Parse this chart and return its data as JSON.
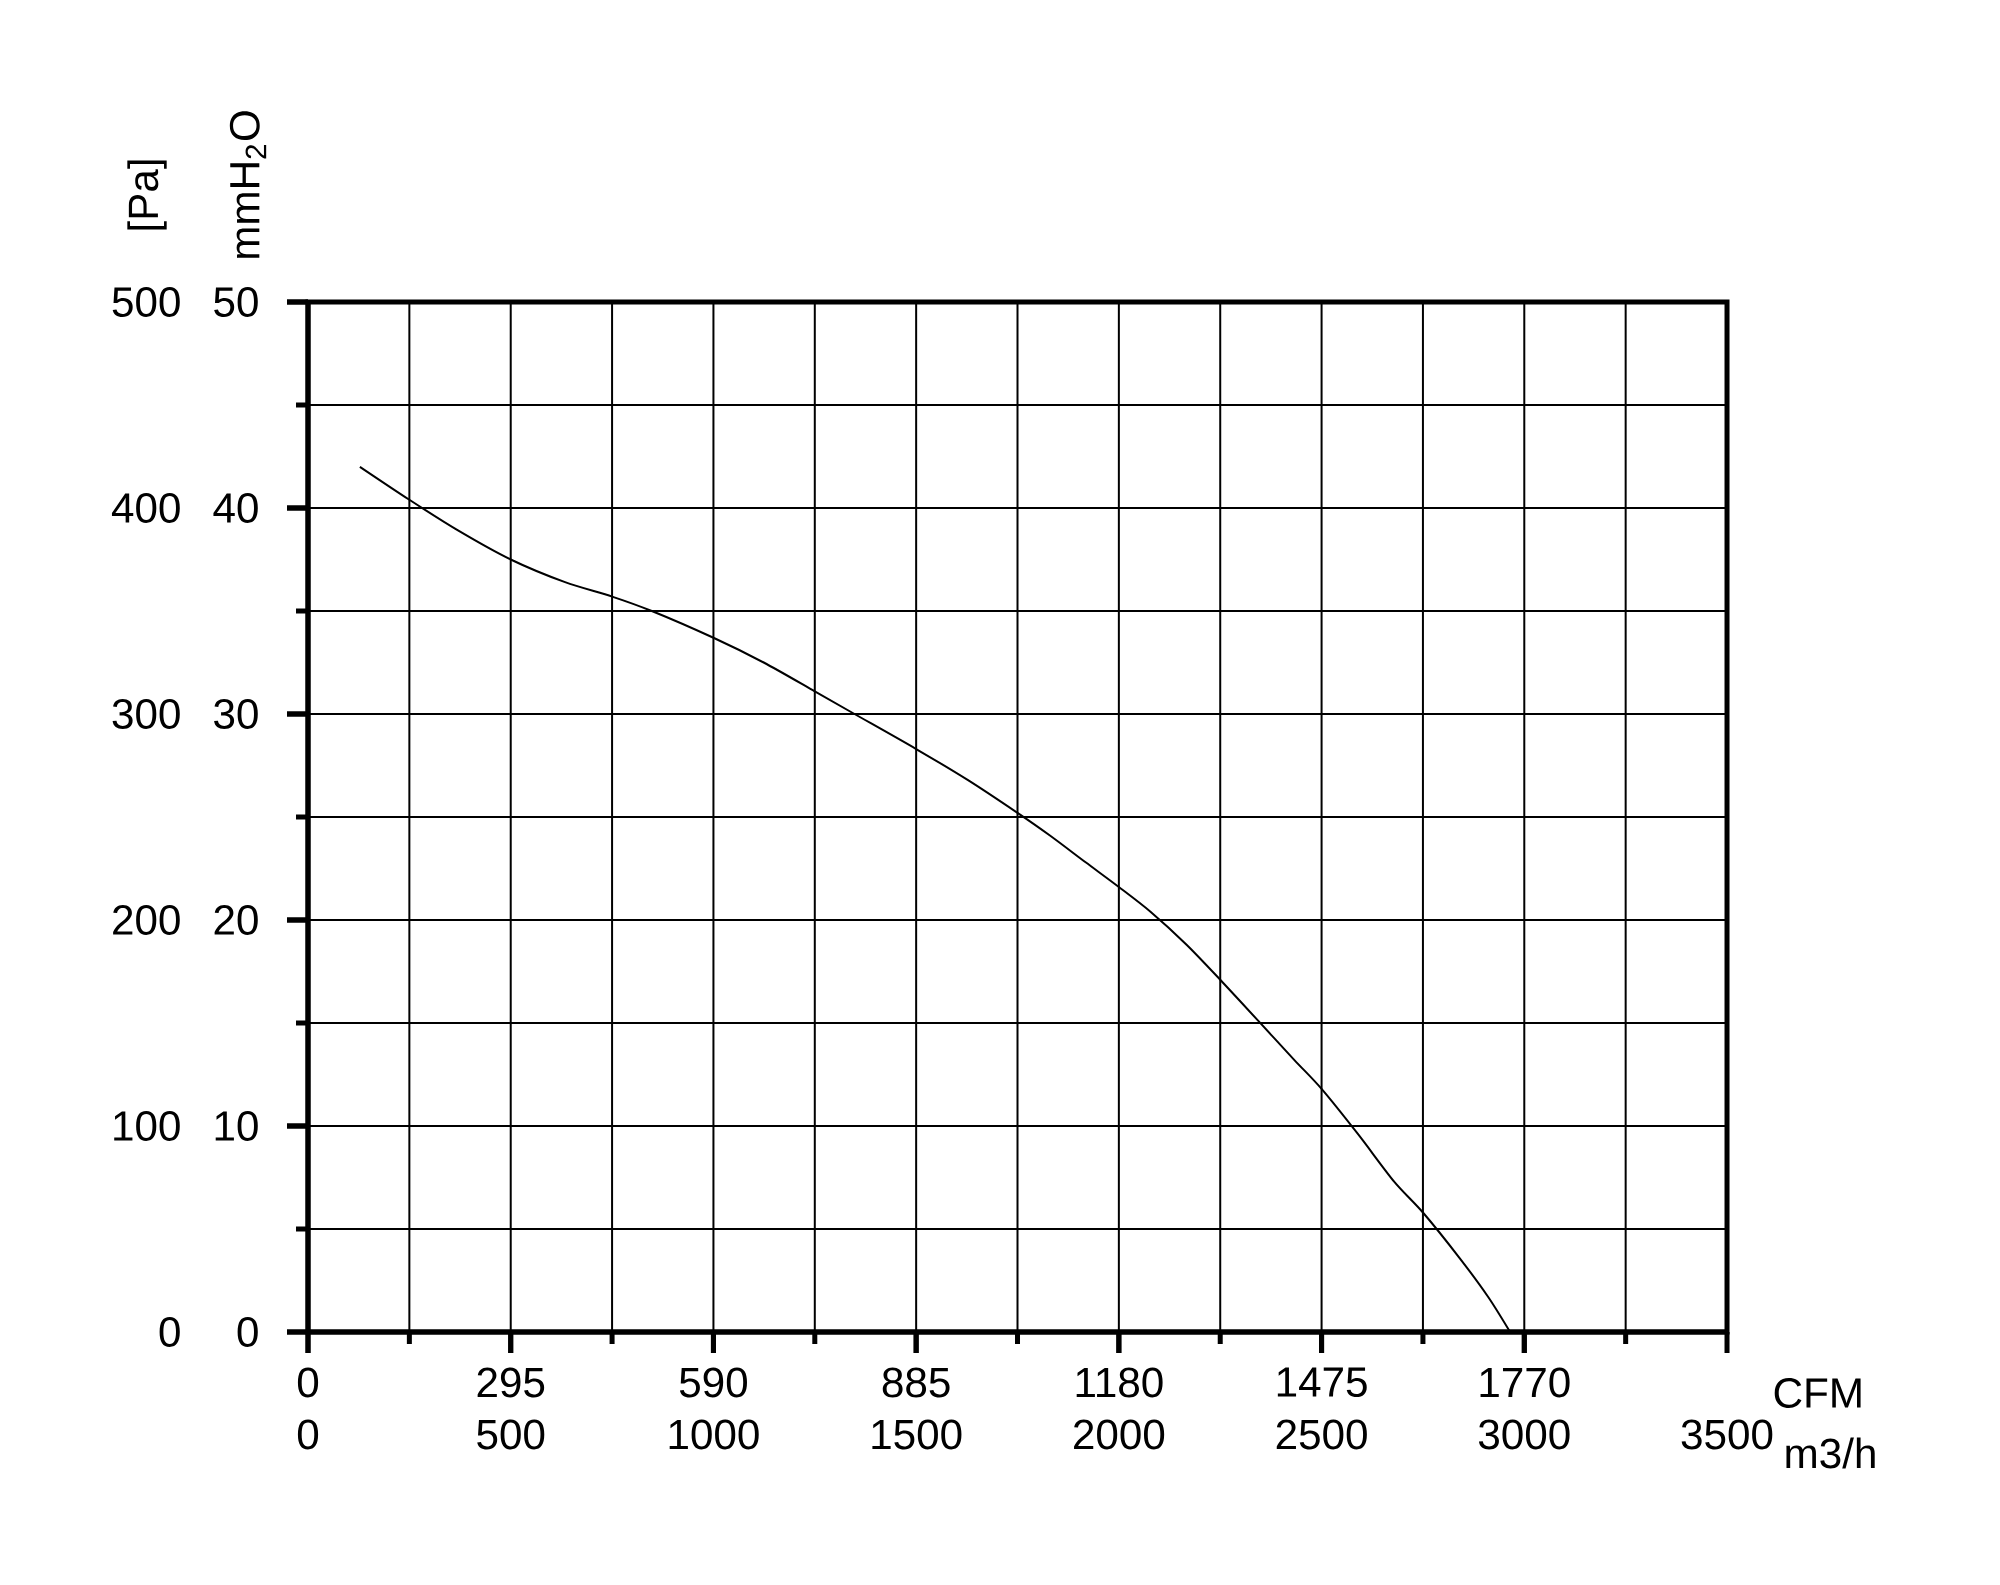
{
  "chart_data": {
    "type": "line",
    "color": "#000000",
    "x": [
      128,
      250,
      371,
      500,
      634,
      750,
      848,
      1000,
      1124,
      1250,
      1348,
      1500,
      1627,
      1750,
      1830,
      1918,
      2000,
      2078,
      2167,
      2250,
      2344,
      2433,
      2500,
      2590,
      2679,
      2750,
      2840,
      2911,
      2965
    ],
    "values": [
      420,
      404,
      389,
      375,
      364,
      357,
      350,
      337,
      325,
      311,
      300,
      283,
      268,
      252,
      241,
      228,
      216,
      204,
      188,
      171,
      151,
      132,
      118,
      96,
      73,
      58,
      36,
      17,
      0
    ],
    "xlabel": "m3/h",
    "x2label": "CFM",
    "ylabel": "[Pa]",
    "y2label": "mmH$_{2}$O",
    "xlim": [
      0,
      3500
    ],
    "x2lim": [
      0,
      2065
    ],
    "ylim": [
      0,
      500
    ],
    "y2lim": [
      0,
      50
    ],
    "xticks": [
      0,
      {
        "value": 250,
        "label": null
      },
      500,
      {
        "value": 750,
        "label": null
      },
      1000,
      {
        "value": 1250,
        "label": null
      },
      1500,
      {
        "value": 1750,
        "label": null
      },
      2000,
      {
        "value": 2250,
        "label": null
      },
      2500,
      {
        "value": 2750,
        "label": null
      },
      3000,
      {
        "value": 3250,
        "label": null
      },
      3500
    ],
    "x2ticks": [
      0,
      295,
      590,
      885,
      1180,
      1475,
      1770
    ],
    "yticks": [
      0,
      {
        "value": 50,
        "label": null
      },
      100,
      {
        "value": 150,
        "label": null
      },
      200,
      {
        "value": 250,
        "label": null
      },
      300,
      {
        "value": 350,
        "label": null
      },
      400,
      {
        "value": 450,
        "label": null
      },
      500
    ],
    "y2ticks": [
      0,
      10,
      20,
      30,
      40,
      50
    ],
    "grid": true
  }
}
